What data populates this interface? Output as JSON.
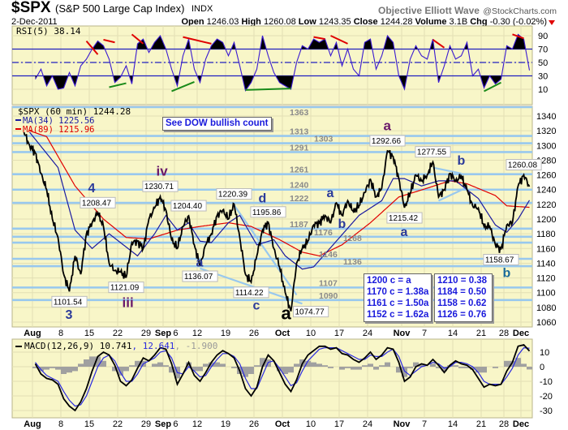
{
  "header": {
    "symbol": "$SPX",
    "name": "(S&P 500 Large Cap Index)",
    "exchange": "INDX",
    "brand": "Objective Elliott Wave",
    "brand_site": "@StockCharts.com",
    "date": "2-Dec-2011",
    "open_label": "Open",
    "open": "1246.03",
    "high_label": "High",
    "high": "1260.08",
    "low_label": "Low",
    "low": "1243.35",
    "close_label": "Close",
    "close": "1244.28",
    "volume_label": "Volume",
    "volume": "3.1B",
    "chg_label": "Chg",
    "chg": "-0.30 (-0.02%)"
  },
  "colors": {
    "panel_bg": "#f8f6c8",
    "grid": "#e2dfb4",
    "level": "#98c8ee",
    "price": "#000000",
    "ma34": "#1a1aa0",
    "ma89": "#e00000",
    "rsi": "#3a1ad0",
    "macd": "#000000",
    "signal": "#2a2ae0",
    "hist": "#a0a0a0",
    "wave_blue": "#2b3a9a",
    "wave_purple": "#6a1a6a",
    "wave_teal": "#1a6a9a"
  },
  "rsi_panel": {
    "legend": "RSI(5) 38.14"
  },
  "main_panel": {
    "legend_price": "$SPX (60 min) 1244.28",
    "legend_ma34": "MA(34) 1225.56",
    "legend_ma89": "MA(89) 1215.96",
    "dow_note": "See DOW bullish count"
  },
  "macd_panel": {
    "legend_a": "MACD(12,26,9) 10.741",
    "legend_b": ", 12.641",
    "legend_c": ", -1.900"
  },
  "fib_boxes": [
    [
      "1200 c = a",
      "1170 c = 1.38a",
      "1161 c = 1.50a",
      "1152 c = 1.62a"
    ],
    [
      "1210 = 0.38",
      "1184 = 0.50",
      "1158 = 0.62",
      "1126 = 0.76"
    ]
  ],
  "chart_data": {
    "type": "line",
    "title": "$SPX (S&P 500 Large Cap Index) 60 min",
    "x_ticks": [
      [
        "2011-08-01",
        "Aug"
      ],
      [
        "2011-08-08",
        "8"
      ],
      [
        "2011-08-15",
        "15"
      ],
      [
        "2011-08-22",
        "22"
      ],
      [
        "2011-08-29",
        "29"
      ],
      [
        "2011-09-01",
        "Sep"
      ],
      [
        "2011-09-06",
        "6"
      ],
      [
        "2011-09-12",
        "12"
      ],
      [
        "2011-09-19",
        "19"
      ],
      [
        "2011-09-26",
        "26"
      ],
      [
        "2011-10-03",
        "Oct"
      ],
      [
        "2011-10-10",
        "10"
      ],
      [
        "2011-10-17",
        "17"
      ],
      [
        "2011-10-24",
        "24"
      ],
      [
        "2011-11-01",
        "Nov"
      ],
      [
        "2011-11-07",
        "7"
      ],
      [
        "2011-11-14",
        "14"
      ],
      [
        "2011-11-21",
        "21"
      ],
      [
        "2011-11-28",
        "28"
      ],
      [
        "2011-12-01",
        "Dec"
      ]
    ],
    "holidays": [
      "2011-09-05",
      "2011-11-24"
    ],
    "price_ylim": [
      1050,
      1363
    ],
    "price_yticks": [
      1060,
      1080,
      1100,
      1120,
      1140,
      1160,
      1180,
      1200,
      1220,
      1240,
      1260,
      1280,
      1300,
      1320,
      1340
    ],
    "price": [
      [
        "2011-07-28",
        1318
      ],
      [
        "2011-07-29",
        1300
      ],
      [
        "2011-08-01",
        1290
      ],
      [
        "2011-08-02",
        1262
      ],
      [
        "2011-08-03",
        1240
      ],
      [
        "2011-08-04",
        1200
      ],
      [
        "2011-08-05",
        1175
      ],
      [
        "2011-08-08",
        1125
      ],
      [
        "2011-08-09",
        1101.54
      ],
      [
        "2011-08-10",
        1150
      ],
      [
        "2011-08-11",
        1125
      ],
      [
        "2011-08-12",
        1180
      ],
      [
        "2011-08-15",
        1195
      ],
      [
        "2011-08-16",
        1208.47
      ],
      [
        "2011-08-17",
        1190
      ],
      [
        "2011-08-18",
        1140
      ],
      [
        "2011-08-19",
        1130
      ],
      [
        "2011-08-22",
        1128
      ],
      [
        "2011-08-23",
        1121.09
      ],
      [
        "2011-08-24",
        1168
      ],
      [
        "2011-08-25",
        1170
      ],
      [
        "2011-08-26",
        1160
      ],
      [
        "2011-08-29",
        1200
      ],
      [
        "2011-08-30",
        1215
      ],
      [
        "2011-08-31",
        1230.71
      ],
      [
        "2011-09-01",
        1212
      ],
      [
        "2011-09-02",
        1172
      ],
      [
        "2011-09-06",
        1160
      ],
      [
        "2011-09-07",
        1190
      ],
      [
        "2011-09-08",
        1204.4
      ],
      [
        "2011-09-09",
        1165
      ],
      [
        "2011-09-12",
        1136.07
      ],
      [
        "2011-09-13",
        1165
      ],
      [
        "2011-09-14",
        1180
      ],
      [
        "2011-09-15",
        1205
      ],
      [
        "2011-09-16",
        1212
      ],
      [
        "2011-09-19",
        1200
      ],
      [
        "2011-09-20",
        1220.39
      ],
      [
        "2011-09-21",
        1175
      ],
      [
        "2011-09-22",
        1125
      ],
      [
        "2011-09-23",
        1114.22
      ],
      [
        "2011-09-26",
        1150
      ],
      [
        "2011-09-27",
        1185
      ],
      [
        "2011-09-28",
        1195.86
      ],
      [
        "2011-09-29",
        1160
      ],
      [
        "2011-09-30",
        1135
      ],
      [
        "2011-10-03",
        1100
      ],
      [
        "2011-10-04",
        1074.77
      ],
      [
        "2011-10-05",
        1140
      ],
      [
        "2011-10-06",
        1160
      ],
      [
        "2011-10-07",
        1170
      ],
      [
        "2011-10-10",
        1192
      ],
      [
        "2011-10-11",
        1195
      ],
      [
        "2011-10-12",
        1205
      ],
      [
        "2011-10-13",
        1195
      ],
      [
        "2011-10-14",
        1222
      ],
      [
        "2011-10-17",
        1205
      ],
      [
        "2011-10-18",
        1225
      ],
      [
        "2011-10-19",
        1210
      ],
      [
        "2011-10-20",
        1218
      ],
      [
        "2011-10-21",
        1236
      ],
      [
        "2011-10-24",
        1254
      ],
      [
        "2011-10-25",
        1230
      ],
      [
        "2011-10-26",
        1242
      ],
      [
        "2011-10-27",
        1292.66
      ],
      [
        "2011-10-28",
        1285
      ],
      [
        "2011-10-31",
        1255
      ],
      [
        "2011-11-01",
        1215.42
      ],
      [
        "2011-11-02",
        1235
      ],
      [
        "2011-11-03",
        1260
      ],
      [
        "2011-11-04",
        1252
      ],
      [
        "2011-11-07",
        1260
      ],
      [
        "2011-11-08",
        1277.55
      ],
      [
        "2011-11-09",
        1230
      ],
      [
        "2011-11-10",
        1240
      ],
      [
        "2011-11-11",
        1262
      ],
      [
        "2011-11-14",
        1252
      ],
      [
        "2011-11-15",
        1258
      ],
      [
        "2011-11-16",
        1240
      ],
      [
        "2011-11-17",
        1218
      ],
      [
        "2011-11-18",
        1215
      ],
      [
        "2011-11-21",
        1190
      ],
      [
        "2011-11-22",
        1190
      ],
      [
        "2011-11-23",
        1165
      ],
      [
        "2011-11-25",
        1158.67
      ],
      [
        "2011-11-28",
        1192
      ],
      [
        "2011-11-29",
        1195
      ],
      [
        "2011-11-30",
        1245
      ],
      [
        "2011-12-01",
        1260.08
      ],
      [
        "2011-12-02",
        1244.28
      ]
    ],
    "ma34": [
      [
        "2011-07-29",
        1318
      ],
      [
        "2011-08-05",
        1270
      ],
      [
        "2011-08-10",
        1185
      ],
      [
        "2011-08-15",
        1160
      ],
      [
        "2011-08-18",
        1180
      ],
      [
        "2011-08-22",
        1168
      ],
      [
        "2011-08-25",
        1150
      ],
      [
        "2011-08-30",
        1180
      ],
      [
        "2011-09-01",
        1205
      ],
      [
        "2011-09-06",
        1185
      ],
      [
        "2011-09-08",
        1195
      ],
      [
        "2011-09-12",
        1170
      ],
      [
        "2011-09-14",
        1168
      ],
      [
        "2011-09-19",
        1195
      ],
      [
        "2011-09-21",
        1205
      ],
      [
        "2011-09-26",
        1165
      ],
      [
        "2011-09-29",
        1172
      ],
      [
        "2011-10-03",
        1150
      ],
      [
        "2011-10-06",
        1132
      ],
      [
        "2011-10-10",
        1135
      ],
      [
        "2011-10-14",
        1170
      ],
      [
        "2011-10-20",
        1205
      ],
      [
        "2011-10-26",
        1225
      ],
      [
        "2011-10-28",
        1255
      ],
      [
        "2011-11-01",
        1255
      ],
      [
        "2011-11-04",
        1245
      ],
      [
        "2011-11-09",
        1252
      ],
      [
        "2011-11-14",
        1252
      ],
      [
        "2011-11-18",
        1228
      ],
      [
        "2011-11-23",
        1192
      ],
      [
        "2011-11-28",
        1182
      ],
      [
        "2011-11-30",
        1200
      ],
      [
        "2011-12-02",
        1225.56
      ]
    ],
    "ma89": [
      [
        "2011-07-29",
        1320
      ],
      [
        "2011-08-03",
        1312
      ],
      [
        "2011-08-10",
        1245
      ],
      [
        "2011-08-17",
        1200
      ],
      [
        "2011-08-23",
        1175
      ],
      [
        "2011-08-29",
        1173
      ],
      [
        "2011-09-06",
        1185
      ],
      [
        "2011-09-12",
        1190
      ],
      [
        "2011-09-19",
        1195
      ],
      [
        "2011-09-23",
        1190
      ],
      [
        "2011-09-30",
        1172
      ],
      [
        "2011-10-06",
        1155
      ],
      [
        "2011-10-11",
        1150
      ],
      [
        "2011-10-17",
        1165
      ],
      [
        "2011-10-24",
        1195
      ],
      [
        "2011-10-31",
        1230
      ],
      [
        "2011-11-07",
        1242
      ],
      [
        "2011-11-11",
        1252
      ],
      [
        "2011-11-16",
        1248
      ],
      [
        "2011-11-23",
        1232
      ],
      [
        "2011-11-28",
        1218
      ],
      [
        "2011-12-02",
        1215.96
      ]
    ],
    "levels": [
      1363,
      1313,
      1303,
      1291,
      1261,
      1240,
      1222,
      1187,
      1176,
      1168,
      1146,
      1136,
      1107,
      1090
    ],
    "price_labels": [
      [
        "1101.54",
        "2011-08-09",
        1101.54,
        "below"
      ],
      [
        "1208.47",
        "2011-08-16",
        1208.47,
        "above"
      ],
      [
        "1121.09",
        "2011-08-23",
        1121.09,
        "below"
      ],
      [
        "1230.71",
        "2011-08-31",
        1230.71,
        "above"
      ],
      [
        "1204.40",
        "2011-09-08",
        1204.4,
        "above"
      ],
      [
        "1136.07",
        "2011-09-12",
        1136.07,
        "below"
      ],
      [
        "1220.39",
        "2011-09-20",
        1220.39,
        "above"
      ],
      [
        "1114.22",
        "2011-09-23",
        1114.22,
        "below"
      ],
      [
        "1195.86",
        "2011-09-28",
        1195.86,
        "above"
      ],
      [
        "1074.77",
        "2011-10-04",
        1074.77,
        "right"
      ],
      [
        "1292.66",
        "2011-10-27",
        1292.66,
        "above"
      ],
      [
        "1215.42",
        "2011-11-01",
        1215.42,
        "below"
      ],
      [
        "1277.55",
        "2011-11-08",
        1277.55,
        "above"
      ],
      [
        "1158.67",
        "2011-11-25",
        1158.67,
        "below"
      ],
      [
        "1260.08",
        "2011-12-01",
        1260.08,
        "above"
      ]
    ],
    "wave_labels": [
      [
        "3",
        "2011-08-09",
        1082,
        "blue"
      ],
      [
        "4",
        "2011-08-15",
        1234,
        "blue"
      ],
      [
        "iii",
        "2011-08-23",
        1098,
        "purple"
      ],
      [
        "iv",
        "2011-08-31",
        1250,
        "purple"
      ],
      [
        "a",
        "2011-09-12",
        1118,
        "blue"
      ],
      [
        "d",
        "2011-09-27",
        1218,
        "blue"
      ],
      [
        "c",
        "2011-09-26",
        1088,
        "blue"
      ],
      [
        "a",
        "2011-10-03",
        1064,
        "black"
      ],
      [
        "a",
        "2011-10-13",
        1230,
        "blue"
      ],
      [
        "b",
        "2011-10-17",
        1170,
        "blue"
      ],
      [
        "a",
        "2011-10-27",
        1312,
        "purple"
      ],
      [
        "a",
        "2011-11-01",
        1177,
        "blue"
      ],
      [
        "b",
        "2011-11-15",
        1274,
        "blue"
      ],
      [
        "b",
        "2011-11-28",
        1128,
        "teal"
      ]
    ],
    "trend_lines": [
      [
        "2011-09-20",
        1219,
        "2011-10-05",
        1097
      ],
      [
        "2011-09-12",
        1133,
        "2011-10-06",
        1085
      ],
      [
        "2011-11-08",
        1270,
        "2011-11-15",
        1262
      ],
      [
        "2011-11-09",
        1225,
        "2011-11-16",
        1243
      ]
    ],
    "rsi": [
      25,
      40,
      15,
      30,
      10,
      12,
      35,
      15,
      45,
      55,
      70,
      82,
      75,
      55,
      20,
      28,
      45,
      18,
      78,
      85,
      65,
      80,
      90,
      70,
      40,
      15,
      60,
      85,
      40,
      20,
      55,
      75,
      85,
      80,
      60,
      80,
      45,
      8,
      20,
      40,
      90,
      60,
      35,
      20,
      15,
      10,
      50,
      75,
      70,
      85,
      80,
      85,
      60,
      80,
      45,
      70,
      40,
      30,
      80,
      85,
      40,
      60,
      90,
      80,
      30,
      10,
      55,
      75,
      60,
      55,
      85,
      20,
      45,
      75,
      55,
      60,
      80,
      30,
      40,
      12,
      30,
      18,
      25,
      75,
      70,
      92,
      85,
      38.14
    ],
    "rsi_yticks": [
      10,
      30,
      50,
      70,
      90
    ],
    "rsi_bands": [
      30,
      50,
      70
    ],
    "rsi_trend_lines": [
      [
        "2011-08-12",
        82,
        "2011-08-16",
        62,
        "red"
      ],
      [
        "2011-08-17",
        84,
        "2011-08-19",
        80,
        "red"
      ],
      [
        "2011-08-24",
        92,
        "2011-08-26",
        78,
        "red"
      ],
      [
        "2011-09-07",
        88,
        "2011-09-14",
        78,
        "red"
      ],
      [
        "2011-10-10",
        88,
        "2011-10-12",
        85,
        "red"
      ],
      [
        "2011-10-13",
        90,
        "2011-10-18",
        78,
        "red"
      ],
      [
        "2011-11-08",
        84,
        "2011-11-10",
        72,
        "red"
      ],
      [
        "2011-11-29",
        92,
        "2011-12-01",
        86,
        "red"
      ],
      [
        "2011-08-18",
        13,
        "2011-08-23",
        19,
        "green"
      ],
      [
        "2011-09-02",
        7,
        "2011-09-09",
        21,
        "green"
      ],
      [
        "2011-09-22",
        9,
        "2011-10-04",
        11,
        "green"
      ],
      [
        "2011-11-21",
        7,
        "2011-11-25",
        20,
        "green"
      ]
    ],
    "macd_yticks": [
      10,
      0,
      -10,
      -20,
      -30
    ],
    "macd": [
      2,
      -5,
      -8,
      -9,
      -12,
      -22,
      -27,
      -30,
      -24,
      -15,
      -3,
      7,
      10,
      8,
      1,
      -10,
      -13,
      -9,
      -1,
      6,
      4,
      8,
      13,
      12,
      2,
      -12,
      -5,
      3,
      -6,
      -10,
      -4,
      3,
      8,
      11,
      9,
      6,
      -3,
      -15,
      -20,
      -14,
      0,
      8,
      4,
      -4,
      -12,
      -17,
      -9,
      2,
      8,
      11,
      14,
      14,
      12,
      13,
      9,
      8,
      5,
      3,
      6,
      10,
      5,
      8,
      13,
      12,
      3,
      -10,
      -7,
      0,
      2,
      1,
      5,
      1,
      -4,
      1,
      4,
      2,
      1,
      -2,
      -8,
      -14,
      -12,
      -13,
      -12,
      -3,
      3,
      14,
      15,
      10.741
    ],
    "signal": [
      3,
      -2,
      -6,
      -8,
      -10,
      -17,
      -23,
      -27,
      -26,
      -20,
      -10,
      0,
      6,
      8,
      4,
      -4,
      -10,
      -10,
      -5,
      2,
      4,
      6,
      10,
      11,
      6,
      -4,
      -5,
      0,
      -3,
      -7,
      -6,
      0,
      5,
      9,
      9,
      7,
      2,
      -8,
      -15,
      -15,
      -6,
      3,
      4,
      -1,
      -7,
      -13,
      -11,
      -3,
      4,
      8,
      12,
      13,
      13,
      13,
      11,
      9,
      7,
      5,
      5,
      8,
      7,
      7,
      10,
      12,
      7,
      -3,
      -6,
      -3,
      0,
      1,
      3,
      2,
      -1,
      0,
      3,
      3,
      2,
      0,
      -4,
      -10,
      -12,
      -12,
      -12,
      -7,
      -1,
      8,
      13,
      12.641
    ]
  }
}
